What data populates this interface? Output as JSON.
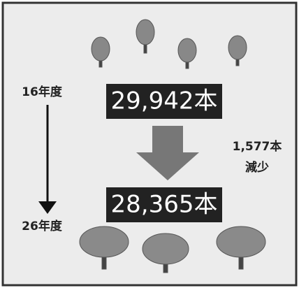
{
  "start": {
    "year": "16年度",
    "count": "29,942本"
  },
  "change": {
    "amount": "1,577本",
    "label": "減少"
  },
  "end": {
    "year": "26年度",
    "count": "28,365本"
  }
}
